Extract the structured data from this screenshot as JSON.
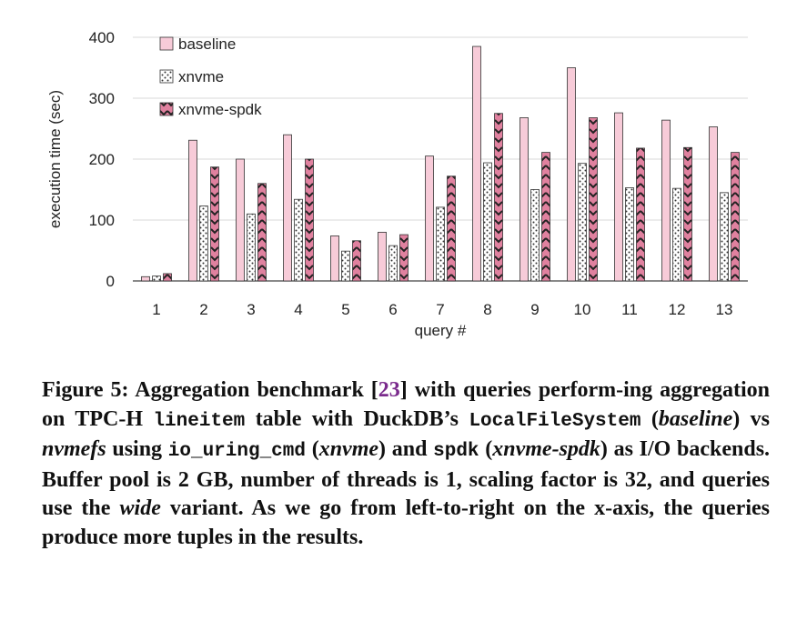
{
  "chart_data": {
    "type": "bar",
    "categories": [
      "1",
      "2",
      "3",
      "4",
      "5",
      "6",
      "7",
      "8",
      "9",
      "10",
      "11",
      "12",
      "13"
    ],
    "series": [
      {
        "name": "baseline",
        "values": [
          7,
          231,
          200,
          240,
          74,
          80,
          205,
          385,
          268,
          350,
          276,
          264,
          253
        ]
      },
      {
        "name": "xnvme",
        "values": [
          8,
          123,
          110,
          134,
          49,
          58,
          121,
          194,
          150,
          193,
          153,
          152,
          145
        ]
      },
      {
        "name": "xnvme-spdk",
        "values": [
          12,
          187,
          160,
          200,
          66,
          76,
          172,
          275,
          211,
          268,
          218,
          219,
          211
        ]
      }
    ],
    "xlabel": "query #",
    "ylabel": "execution time (sec)",
    "ylim": [
      0,
      400
    ],
    "yticks": [
      "0",
      "100",
      "200",
      "300",
      "400"
    ],
    "grid": true,
    "legend_position": "top-left"
  },
  "colors": {
    "baseline_fill": "#f7cbd8",
    "xnvme_fill": "#ffffff",
    "spdk_fill": "#e0819f",
    "outline": "#333333",
    "grid": "#d9d9d9"
  },
  "caption": {
    "p1": "Figure 5: Aggregation benchmark [",
    "ref": "23",
    "p2": "] with queries perform-ing aggregation on TPC-H ",
    "c1": "lineitem",
    "p3": " table with DuckDB’s ",
    "c2": "LocalFileSystem",
    "p4": " (",
    "i1": "baseline",
    "p5": ") vs ",
    "i2": "nvmefs",
    "p6": " using ",
    "c3": "io_uring_cmd",
    "p7": " (",
    "i3": "xnvme",
    "p8": ") and ",
    "c4": "spdk",
    "p9": " (",
    "i4": "xnvme-spdk",
    "p10": ") as I/O backends. Buffer pool is 2 GB, number of threads is 1, scaling factor is 32, and queries use the ",
    "i5": "wide",
    "p11": " variant. As we go from left-to-right on the x-axis, the queries produce more tuples in the results."
  }
}
